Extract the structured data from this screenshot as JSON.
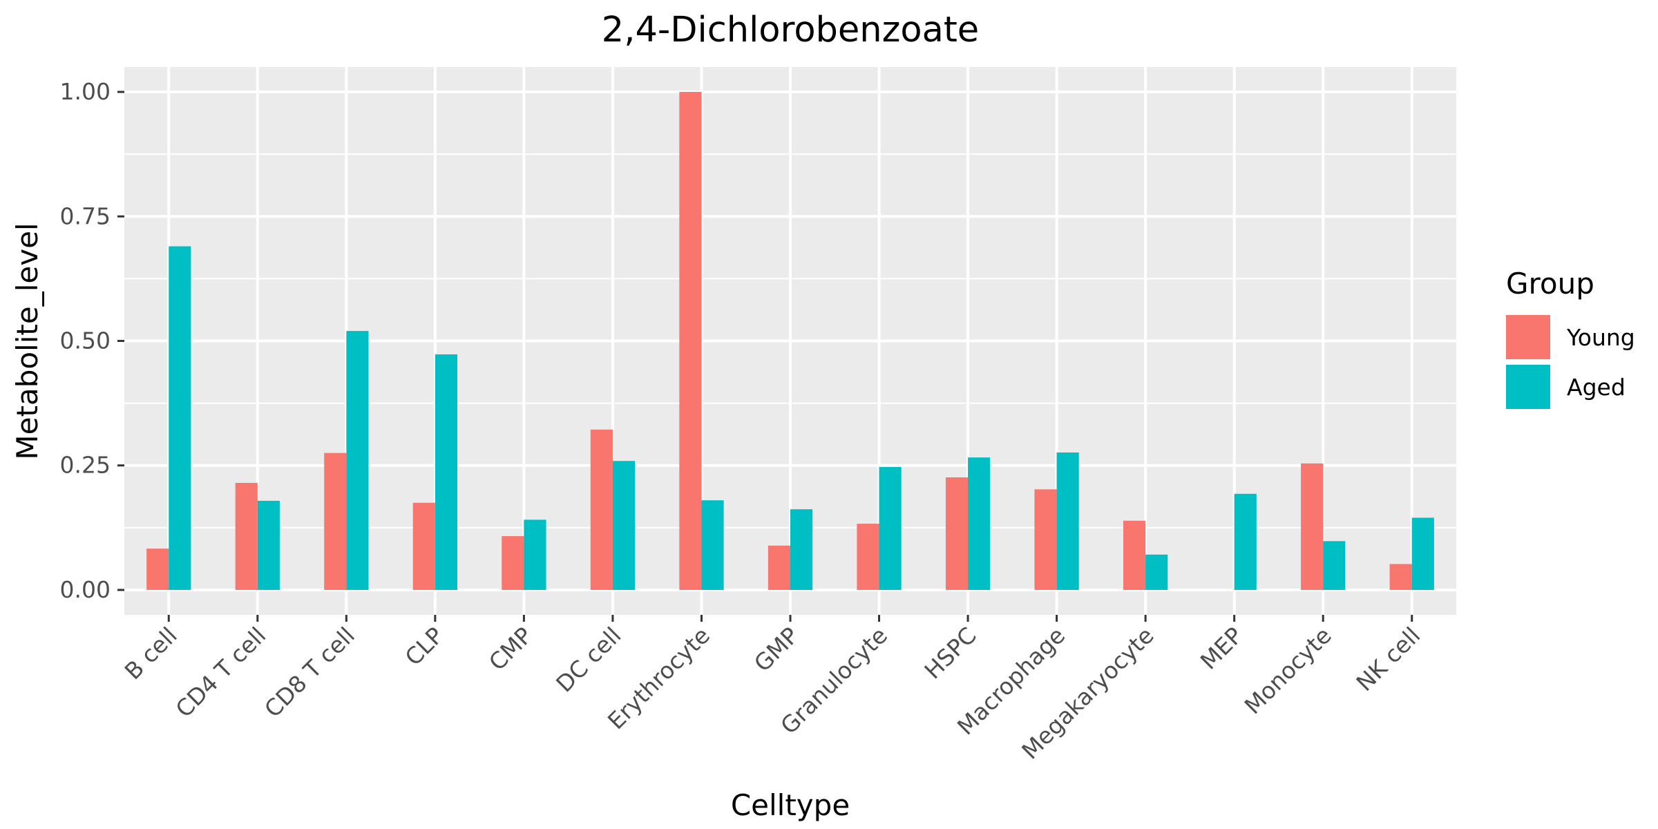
{
  "chart_data": {
    "type": "bar",
    "title": "2,4-Dichlorobenzoate",
    "xlabel": "Celltype",
    "ylabel": "Metabolite_level",
    "categories": [
      "B cell",
      "CD4 T cell",
      "CD8 T cell",
      "CLP",
      "CMP",
      "DC cell",
      "Erythrocyte",
      "GMP",
      "Granulocyte",
      "HSPC",
      "Macrophage",
      "Megakaryocyte",
      "MEP",
      "Monocyte",
      "NK cell"
    ],
    "series": [
      {
        "name": "Young",
        "color": "#F8766D",
        "values": [
          0.083,
          0.215,
          0.275,
          0.175,
          0.108,
          0.322,
          1.0,
          0.089,
          0.133,
          0.226,
          0.202,
          0.139,
          null,
          0.254,
          0.052
        ]
      },
      {
        "name": "Aged",
        "color": "#00BFC4",
        "values": [
          0.69,
          0.179,
          0.52,
          0.473,
          0.141,
          0.259,
          0.18,
          0.162,
          0.247,
          0.266,
          0.276,
          0.071,
          0.193,
          0.098,
          0.145
        ]
      }
    ],
    "ylim": [
      -0.05,
      1.05
    ],
    "yticks": [
      0,
      0.25,
      0.5,
      0.75,
      1.0
    ],
    "ytick_labels": [
      "0.00",
      "0.25",
      "0.50",
      "0.75",
      "1.00"
    ],
    "grid": true,
    "legend": {
      "title": "Group",
      "position": "right"
    }
  }
}
